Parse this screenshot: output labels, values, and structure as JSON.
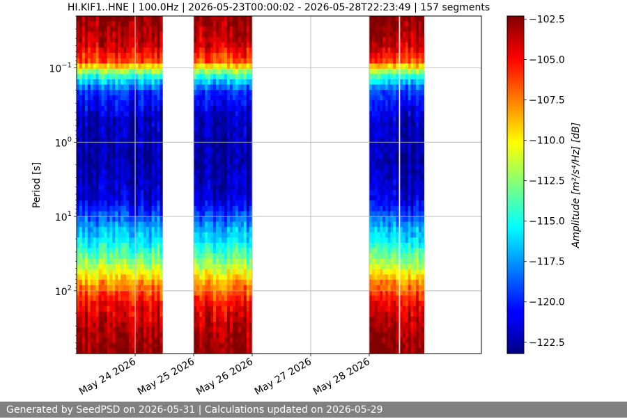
{
  "chart_data": {
    "type": "heatmap",
    "title": "HI.KIF1..HNE | 100.0Hz | 2026-05-23T00:00:02 - 2026-05-28T22:23:49 | 157 segments",
    "ylabel": "Period [s]",
    "yscale": "log",
    "y_inverted": true,
    "ylim": [
      0.02,
      700
    ],
    "y_ticks": [
      {
        "value": 0.1,
        "base": "10",
        "exp": "−1"
      },
      {
        "value": 1,
        "base": "10",
        "exp": "0"
      },
      {
        "value": 10,
        "base": "10",
        "exp": "1"
      },
      {
        "value": 100,
        "base": "10",
        "exp": "2"
      }
    ],
    "xlim": [
      "2026-05-23T00:00:00",
      "2026-05-29T22:00:00"
    ],
    "x_ticks": [
      {
        "date": "2026-05-24",
        "label": "May 24 2026"
      },
      {
        "date": "2026-05-25",
        "label": "May 25 2026"
      },
      {
        "date": "2026-05-26",
        "label": "May 26 2026"
      },
      {
        "date": "2026-05-27",
        "label": "May 27 2026"
      },
      {
        "date": "2026-05-28",
        "label": "May 28 2026"
      }
    ],
    "data_segments": [
      {
        "start": "2026-05-23T00:00:00",
        "end": "2026-05-23T23:40:00"
      },
      {
        "start": "2026-05-24T00:10:00",
        "end": "2026-05-24T11:10:00"
      },
      {
        "start": "2026-05-25T00:05:00",
        "end": "2026-05-25T23:55:00"
      },
      {
        "start": "2026-05-28T00:00:00",
        "end": "2026-05-28T12:00:00"
      },
      {
        "start": "2026-05-28T12:40:00",
        "end": "2026-05-28T22:23:49"
      }
    ],
    "amplitude_profile": [
      {
        "period": 0.02,
        "db": -102.5
      },
      {
        "period": 0.05,
        "db": -104.0
      },
      {
        "period": 0.08,
        "db": -106.5
      },
      {
        "period": 0.12,
        "db": -113.5
      },
      {
        "period": 0.2,
        "db": -119.5
      },
      {
        "period": 0.5,
        "db": -122.0
      },
      {
        "period": 2.0,
        "db": -122.5
      },
      {
        "period": 6.0,
        "db": -121.5
      },
      {
        "period": 12.0,
        "db": -118.0
      },
      {
        "period": 25.0,
        "db": -115.0
      },
      {
        "period": 45.0,
        "db": -112.0
      },
      {
        "period": 80.0,
        "db": -108.0
      },
      {
        "period": 150.0,
        "db": -105.0
      },
      {
        "period": 300.0,
        "db": -103.5
      },
      {
        "period": 700.0,
        "db": -102.5
      }
    ],
    "colorbar": {
      "label": "Amplitude [m²/s⁴/Hz] [dB]",
      "min": -123.2,
      "max": -102.3,
      "colormap": "jet",
      "ticks": [
        "−102.5",
        "−105.0",
        "−107.5",
        "−110.0",
        "−112.5",
        "−115.0",
        "−117.5",
        "−120.0",
        "−122.5"
      ],
      "tick_values": [
        -102.5,
        -105.0,
        -107.5,
        -110.0,
        -112.5,
        -115.0,
        -117.5,
        -120.0,
        -122.5
      ]
    },
    "grid": true
  },
  "footer": {
    "text": "Generated by SeedPSD on 2026-05-31 | Calculations updated on 2026-05-29"
  }
}
